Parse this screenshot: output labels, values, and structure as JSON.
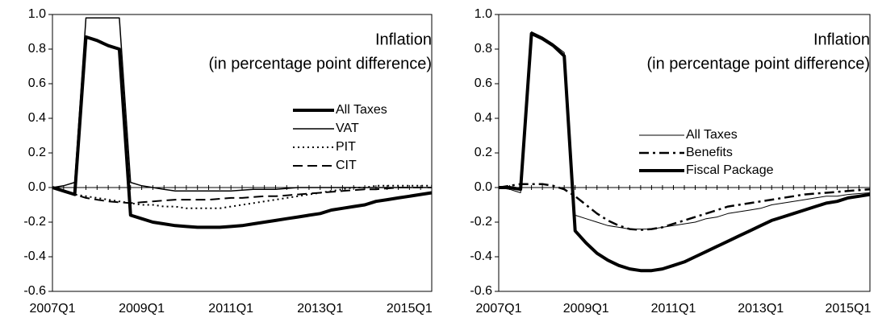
{
  "chart_data": [
    {
      "type": "line",
      "annotations": [
        "Inflation",
        "(in percentage point difference)"
      ],
      "categories": [
        "2007Q1",
        null,
        null,
        null,
        null,
        null,
        null,
        null,
        "2009Q1",
        null,
        null,
        null,
        null,
        null,
        null,
        null,
        "2011Q1",
        null,
        null,
        null,
        null,
        null,
        null,
        null,
        "2013Q1",
        null,
        null,
        null,
        null,
        null,
        null,
        null,
        "2015Q1",
        null,
        null
      ],
      "ylim": [
        -0.6,
        1.0
      ],
      "yticks": [
        -0.6,
        -0.4,
        -0.2,
        {
          "value": 0,
          "label": "0.0"
        },
        0.2,
        0.4,
        0.6,
        0.8,
        {
          "value": 1.0,
          "label": "1.0"
        }
      ],
      "series": [
        {
          "name": "All Taxes",
          "color": "#000000",
          "line_width": 4,
          "dash": "solid",
          "values": [
            0,
            -0.02,
            -0.04,
            0.87,
            0.85,
            0.82,
            0.8,
            -0.16,
            -0.18,
            -0.2,
            -0.21,
            -0.22,
            -0.225,
            -0.23,
            -0.23,
            -0.23,
            -0.225,
            -0.22,
            -0.21,
            -0.2,
            -0.19,
            -0.18,
            -0.17,
            -0.16,
            -0.15,
            -0.13,
            -0.12,
            -0.11,
            -0.1,
            -0.08,
            -0.07,
            -0.06,
            -0.05,
            -0.04,
            -0.03
          ]
        },
        {
          "name": "VAT",
          "color": "#000000",
          "line_width": 1.5,
          "dash": "solid",
          "values": [
            0,
            0.01,
            0.03,
            0.98,
            0.98,
            0.98,
            0.98,
            0.03,
            0.01,
            0,
            -0.01,
            -0.02,
            -0.02,
            -0.02,
            -0.02,
            -0.02,
            -0.02,
            -0.015,
            -0.01,
            -0.01,
            -0.01,
            -0.005,
            0,
            0,
            0,
            0,
            0,
            0,
            0,
            0,
            0,
            0,
            0,
            0,
            0
          ]
        },
        {
          "name": "PIT",
          "color": "#000000",
          "line_width": 2,
          "dash": "dot",
          "values": [
            0,
            -0.02,
            -0.04,
            -0.05,
            -0.06,
            -0.07,
            -0.08,
            -0.09,
            -0.1,
            -0.1,
            -0.11,
            -0.11,
            -0.12,
            -0.12,
            -0.12,
            -0.12,
            -0.11,
            -0.1,
            -0.09,
            -0.08,
            -0.07,
            -0.06,
            -0.05,
            -0.04,
            -0.03,
            -0.02,
            -0.01,
            0,
            0,
            0.01,
            0.01,
            0.01,
            0.01,
            0.01,
            0.01
          ]
        },
        {
          "name": "CIT",
          "color": "#000000",
          "line_width": 2,
          "dash": "dash",
          "values": [
            0,
            -0.02,
            -0.04,
            -0.06,
            -0.07,
            -0.08,
            -0.085,
            -0.09,
            -0.085,
            -0.08,
            -0.075,
            -0.07,
            -0.07,
            -0.07,
            -0.07,
            -0.065,
            -0.06,
            -0.06,
            -0.055,
            -0.05,
            -0.05,
            -0.045,
            -0.04,
            -0.035,
            -0.03,
            -0.025,
            -0.02,
            -0.015,
            -0.01,
            -0.01,
            -0.005,
            0,
            0,
            0,
            0
          ]
        }
      ]
    },
    {
      "type": "line",
      "annotations": [
        "Inflation",
        "(in percentage point difference)"
      ],
      "categories": [
        "2007Q1",
        null,
        null,
        null,
        null,
        null,
        null,
        null,
        "2009Q1",
        null,
        null,
        null,
        null,
        null,
        null,
        null,
        "2011Q1",
        null,
        null,
        null,
        null,
        null,
        null,
        null,
        "2013Q1",
        null,
        null,
        null,
        null,
        null,
        null,
        null,
        "2015Q1",
        null,
        null
      ],
      "ylim": [
        -0.6,
        1.0
      ],
      "yticks": [
        -0.6,
        -0.4,
        -0.2,
        {
          "value": 0,
          "label": "0.0"
        },
        0.2,
        0.4,
        0.6,
        0.8,
        {
          "value": 1.0,
          "label": "1.0"
        }
      ],
      "series": [
        {
          "name": "All Taxes",
          "color": "#000000",
          "line_width": 1,
          "dash": "solid",
          "values": [
            0,
            -0.01,
            -0.03,
            0.9,
            0.87,
            0.83,
            0.78,
            -0.16,
            -0.18,
            -0.2,
            -0.22,
            -0.23,
            -0.24,
            -0.24,
            -0.24,
            -0.23,
            -0.22,
            -0.21,
            -0.2,
            -0.18,
            -0.17,
            -0.15,
            -0.14,
            -0.13,
            -0.12,
            -0.1,
            -0.09,
            -0.08,
            -0.07,
            -0.06,
            -0.05,
            -0.05,
            -0.04,
            -0.035,
            -0.03
          ]
        },
        {
          "name": "Benefits",
          "color": "#000000",
          "line_width": 2.5,
          "dash": "dashdot",
          "values": [
            0,
            0.01,
            0.02,
            0.02,
            0.02,
            0.01,
            -0.01,
            -0.05,
            -0.1,
            -0.15,
            -0.19,
            -0.22,
            -0.24,
            -0.245,
            -0.24,
            -0.23,
            -0.21,
            -0.19,
            -0.17,
            -0.15,
            -0.13,
            -0.11,
            -0.1,
            -0.09,
            -0.08,
            -0.07,
            -0.06,
            -0.05,
            -0.04,
            -0.035,
            -0.03,
            -0.025,
            -0.02,
            -0.015,
            -0.01
          ]
        },
        {
          "name": "Fiscal Package",
          "color": "#000000",
          "line_width": 4,
          "dash": "solid",
          "values": [
            0,
            0,
            -0.01,
            0.89,
            0.86,
            0.82,
            0.76,
            -0.25,
            -0.32,
            -0.38,
            -0.42,
            -0.45,
            -0.47,
            -0.48,
            -0.48,
            -0.47,
            -0.45,
            -0.43,
            -0.4,
            -0.37,
            -0.34,
            -0.31,
            -0.28,
            -0.25,
            -0.22,
            -0.19,
            -0.17,
            -0.15,
            -0.13,
            -0.11,
            -0.09,
            -0.08,
            -0.06,
            -0.05,
            -0.04
          ]
        }
      ]
    }
  ]
}
